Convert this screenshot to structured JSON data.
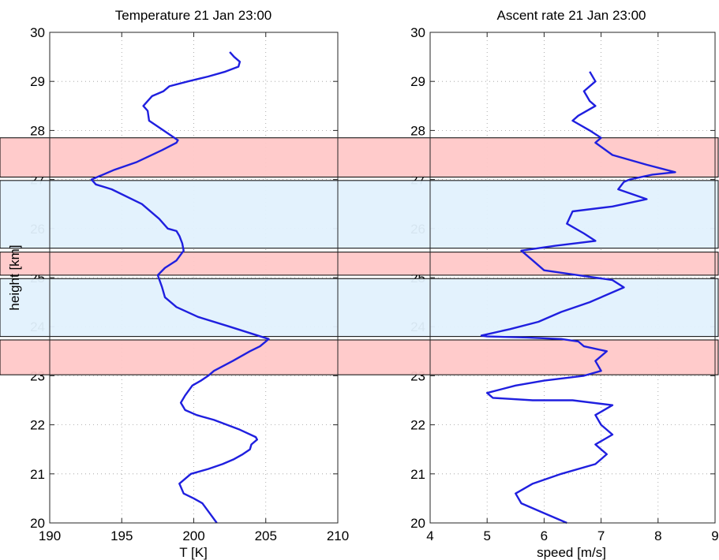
{
  "colors": {
    "series": "#1f1fdf",
    "stable_band": "#ffc8c8",
    "unstable_band": "#e2f1fd"
  },
  "chart_data": [
    {
      "type": "line",
      "title": "Temperature 21 Jan 23:00",
      "xlabel": "T [K]",
      "ylabel": "height [km]",
      "xlim": [
        190,
        210
      ],
      "ylim": [
        20,
        30
      ],
      "xticks": [
        "190",
        "195",
        "200",
        "205",
        "210"
      ],
      "yticks": [
        "20",
        "21",
        "22",
        "23",
        "24",
        "25",
        "26",
        "27",
        "28",
        "29",
        "30"
      ],
      "grid": true,
      "series": [
        {
          "x": [
            201.6,
            201.1,
            200.6,
            200.0,
            199.3,
            199.0,
            199.8,
            201.0,
            202.0,
            202.8,
            203.4,
            203.9,
            204.0,
            204.4,
            204.3,
            203.2,
            201.4,
            200.2,
            199.4,
            199.1,
            199.4,
            199.9,
            200.5,
            201.0,
            201.4,
            202.7,
            203.9,
            204.6,
            205.0,
            205.2,
            202.5,
            200.3,
            198.8,
            198.0,
            197.8,
            197.5,
            198.0,
            198.8,
            199.3,
            199.2,
            199.0,
            198.8,
            198.2,
            197.6,
            196.4,
            194.3,
            193.2,
            192.9,
            194.5,
            196.0,
            197.8,
            198.8,
            198.9,
            197.9,
            196.9,
            196.8,
            196.5,
            197.1,
            197.9,
            198.3,
            199.6,
            201.0,
            202.2,
            203.1,
            203.2,
            202.8,
            202.5
          ],
          "y": [
            20.0,
            20.2,
            20.4,
            20.5,
            20.6,
            20.8,
            21.0,
            21.1,
            21.2,
            21.3,
            21.4,
            21.5,
            21.6,
            21.7,
            21.75,
            21.9,
            22.1,
            22.2,
            22.3,
            22.45,
            22.6,
            22.8,
            22.9,
            23.0,
            23.1,
            23.3,
            23.5,
            23.6,
            23.7,
            23.75,
            24.0,
            24.2,
            24.4,
            24.6,
            24.8,
            25.05,
            25.2,
            25.35,
            25.55,
            25.7,
            25.85,
            25.95,
            26.0,
            26.2,
            26.5,
            26.8,
            26.9,
            27.0,
            27.2,
            27.35,
            27.6,
            27.75,
            27.8,
            28.0,
            28.2,
            28.4,
            28.5,
            28.7,
            28.8,
            28.9,
            29.0,
            29.1,
            29.2,
            29.3,
            29.4,
            29.5,
            29.6
          ]
        }
      ]
    },
    {
      "type": "line",
      "title": "Ascent rate 21 Jan 23:00",
      "xlabel": "speed [m/s]",
      "ylabel": "",
      "xlim": [
        4,
        9
      ],
      "ylim": [
        20,
        30
      ],
      "xticks": [
        "4",
        "5",
        "6",
        "7",
        "8",
        "9"
      ],
      "yticks": [
        "20",
        "21",
        "22",
        "23",
        "24",
        "25",
        "26",
        "27",
        "28",
        "29",
        "30"
      ],
      "grid": true,
      "series": [
        {
          "x": [
            6.4,
            6.0,
            5.6,
            5.5,
            5.8,
            6.3,
            6.9,
            7.1,
            6.9,
            7.2,
            7.0,
            6.9,
            7.2,
            6.5,
            5.8,
            5.1,
            5.0,
            5.5,
            6.0,
            6.7,
            7.0,
            6.9,
            7.1,
            6.7,
            6.6,
            6.3,
            5.7,
            5.0,
            4.9,
            5.4,
            5.9,
            6.3,
            6.8,
            7.4,
            7.2,
            6.6,
            6.0,
            5.8,
            5.6,
            6.2,
            6.9,
            6.7,
            6.4,
            6.5,
            7.2,
            7.8,
            7.3,
            7.4,
            7.5,
            7.9,
            8.3,
            7.8,
            7.2,
            6.9,
            7.0,
            6.8,
            6.5,
            6.6,
            6.9,
            6.8,
            6.7,
            6.9,
            6.8
          ],
          "y": [
            20.0,
            20.2,
            20.4,
            20.6,
            20.8,
            21.0,
            21.2,
            21.4,
            21.6,
            21.8,
            22.0,
            22.2,
            22.4,
            22.5,
            22.5,
            22.55,
            22.65,
            22.8,
            22.9,
            23.0,
            23.1,
            23.3,
            23.5,
            23.6,
            23.7,
            23.75,
            23.78,
            23.8,
            23.82,
            23.95,
            24.1,
            24.3,
            24.5,
            24.8,
            24.95,
            25.05,
            25.15,
            25.35,
            25.55,
            25.65,
            25.75,
            25.9,
            26.1,
            26.35,
            26.45,
            26.6,
            26.8,
            26.95,
            27.0,
            27.1,
            27.15,
            27.3,
            27.5,
            27.75,
            27.85,
            28.0,
            28.2,
            28.3,
            28.5,
            28.6,
            28.8,
            29.0,
            29.2
          ]
        }
      ]
    }
  ],
  "bands": {
    "xrange": [
      0,
      911
    ],
    "items": [
      {
        "kind": "stable",
        "bottom": 27.05,
        "top": 27.85
      },
      {
        "kind": "unstable",
        "bottom": 25.6,
        "top": 26.98
      },
      {
        "kind": "stable",
        "bottom": 25.05,
        "top": 25.52
      },
      {
        "kind": "unstable",
        "bottom": 23.8,
        "top": 24.98
      },
      {
        "kind": "stable",
        "bottom": 23.02,
        "top": 23.73
      }
    ]
  }
}
